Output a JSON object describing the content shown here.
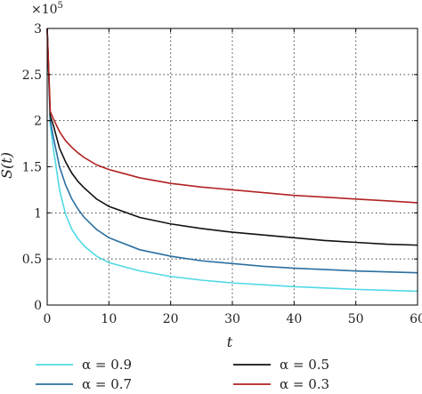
{
  "chart_data": {
    "type": "line",
    "xlabel": "t",
    "ylabel": "S(t)",
    "y_multiplier": "×10",
    "y_multiplier_exp": "5",
    "xlim": [
      0,
      60
    ],
    "ylim": [
      0,
      3
    ],
    "x_ticks": [
      "0",
      "10",
      "20",
      "30",
      "40",
      "50",
      "60"
    ],
    "y_ticks": [
      "0",
      "0.5",
      "1",
      "1.5",
      "2",
      "2.5",
      "3"
    ],
    "grid": true,
    "legend_position": "bottom",
    "series": [
      {
        "name": "α = 0.9",
        "color": "#4fd9e6",
        "x": [
          0,
          0.5,
          1,
          2,
          3,
          4,
          5,
          6,
          8,
          10,
          15,
          20,
          25,
          30,
          35,
          40,
          45,
          50,
          55,
          60
        ],
        "y": [
          3.0,
          1.95,
          1.7,
          1.25,
          0.98,
          0.82,
          0.72,
          0.64,
          0.53,
          0.46,
          0.37,
          0.31,
          0.27,
          0.24,
          0.22,
          0.2,
          0.185,
          0.17,
          0.16,
          0.15
        ]
      },
      {
        "name": "α = 0.7",
        "color": "#2a6fa0",
        "x": [
          0,
          0.5,
          1,
          2,
          3,
          4,
          5,
          6,
          8,
          10,
          15,
          20,
          25,
          30,
          35,
          40,
          45,
          50,
          55,
          60
        ],
        "y": [
          3.0,
          2.0,
          1.82,
          1.5,
          1.3,
          1.15,
          1.04,
          0.95,
          0.82,
          0.73,
          0.6,
          0.53,
          0.48,
          0.45,
          0.42,
          0.4,
          0.385,
          0.37,
          0.36,
          0.35
        ]
      },
      {
        "name": "α = 0.5",
        "color": "#111111",
        "x": [
          0,
          0.5,
          1,
          2,
          3,
          4,
          5,
          6,
          8,
          10,
          15,
          20,
          25,
          30,
          35,
          40,
          45,
          50,
          55,
          60
        ],
        "y": [
          3.0,
          2.05,
          1.95,
          1.7,
          1.55,
          1.43,
          1.34,
          1.27,
          1.15,
          1.07,
          0.95,
          0.88,
          0.83,
          0.79,
          0.76,
          0.73,
          0.7,
          0.68,
          0.66,
          0.65
        ]
      },
      {
        "name": "α = 0.3",
        "color": "#b22222",
        "x": [
          0,
          0.5,
          1,
          2,
          3,
          4,
          5,
          6,
          8,
          10,
          15,
          20,
          25,
          30,
          35,
          40,
          45,
          50,
          55,
          60
        ],
        "y": [
          3.0,
          2.1,
          2.02,
          1.88,
          1.78,
          1.71,
          1.65,
          1.6,
          1.52,
          1.47,
          1.38,
          1.32,
          1.28,
          1.25,
          1.22,
          1.19,
          1.17,
          1.15,
          1.13,
          1.11
        ]
      }
    ]
  }
}
